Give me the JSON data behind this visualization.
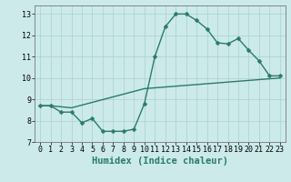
{
  "line1_x": [
    0,
    1,
    2,
    3,
    4,
    5,
    6,
    7,
    8,
    9,
    10,
    11,
    12,
    13,
    14,
    15,
    16,
    17,
    18,
    19,
    20,
    21,
    22,
    23
  ],
  "line1_y": [
    8.7,
    8.7,
    8.4,
    8.4,
    7.9,
    8.1,
    7.5,
    7.5,
    7.5,
    7.6,
    8.8,
    11.0,
    12.4,
    13.0,
    13.0,
    12.7,
    12.3,
    11.65,
    11.6,
    11.85,
    11.3,
    10.8,
    10.1,
    10.1
  ],
  "line2_x": [
    0,
    1,
    3,
    10,
    23
  ],
  "line2_y": [
    8.7,
    8.7,
    8.6,
    9.5,
    10.0
  ],
  "line_color": "#2a7a6a",
  "bg_color": "#cceaea",
  "grid_color": "#aacfcf",
  "xlabel": "Humidex (Indice chaleur)",
  "xlim": [
    -0.5,
    23.5
  ],
  "ylim": [
    7.0,
    13.4
  ],
  "xticks": [
    0,
    1,
    2,
    3,
    4,
    5,
    6,
    7,
    8,
    9,
    10,
    11,
    12,
    13,
    14,
    15,
    16,
    17,
    18,
    19,
    20,
    21,
    22,
    23
  ],
  "yticks": [
    7,
    8,
    9,
    10,
    11,
    12,
    13
  ],
  "markersize": 2.5,
  "linewidth": 1.0,
  "xlabel_fontsize": 7.5,
  "tick_fontsize": 6.0
}
